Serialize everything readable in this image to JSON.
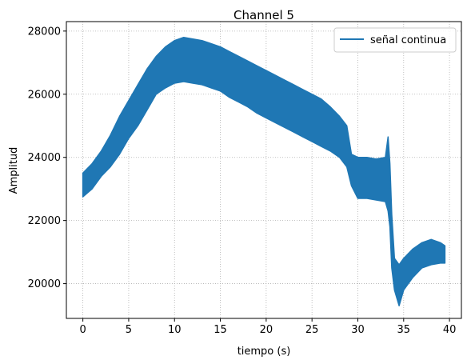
{
  "chart_data": {
    "type": "line",
    "title": "Channel 5",
    "xlabel": "tiempo (s)",
    "ylabel": "Amplitud",
    "xlim": [
      -1.8,
      41.3
    ],
    "ylim": [
      18900,
      28300
    ],
    "xticks": [
      0,
      5,
      10,
      15,
      20,
      25,
      30,
      35,
      40
    ],
    "yticks": [
      20000,
      22000,
      24000,
      26000,
      28000
    ],
    "grid": true,
    "grid_style": "dotted",
    "legend_position": "top-right",
    "series": [
      {
        "name": "señal continua",
        "color": "#1f77b4",
        "x": [
          0,
          1,
          2,
          3,
          4,
          5,
          6,
          7,
          8,
          9,
          10,
          11,
          12,
          13,
          14,
          15,
          16,
          17,
          18,
          19,
          20,
          21,
          22,
          23,
          24,
          25,
          26,
          27,
          28,
          28.8,
          29.3,
          30,
          31,
          32,
          33,
          33.3,
          33.5,
          33.7,
          34,
          34.5,
          35,
          36,
          37,
          38,
          39,
          39.5
        ],
        "y_high": [
          23500,
          23800,
          24200,
          24700,
          25300,
          25800,
          26300,
          26800,
          27200,
          27500,
          27700,
          27800,
          27750,
          27700,
          27600,
          27500,
          27350,
          27200,
          27050,
          26900,
          26750,
          26600,
          26450,
          26300,
          26150,
          26000,
          25850,
          25600,
          25300,
          25000,
          24100,
          24000,
          24000,
          23950,
          24000,
          24650,
          23800,
          22200,
          20800,
          20600,
          20800,
          21100,
          21300,
          21400,
          21300,
          21200
        ],
        "y_low": [
          22750,
          23000,
          23400,
          23700,
          24100,
          24600,
          25000,
          25500,
          26000,
          26200,
          26350,
          26400,
          26350,
          26300,
          26200,
          26100,
          25900,
          25750,
          25600,
          25400,
          25250,
          25100,
          24950,
          24800,
          24650,
          24500,
          24350,
          24200,
          24000,
          23700,
          23100,
          22700,
          22700,
          22650,
          22600,
          22300,
          21800,
          20500,
          19800,
          19300,
          19800,
          20200,
          20500,
          20600,
          20650,
          20650
        ]
      }
    ]
  }
}
